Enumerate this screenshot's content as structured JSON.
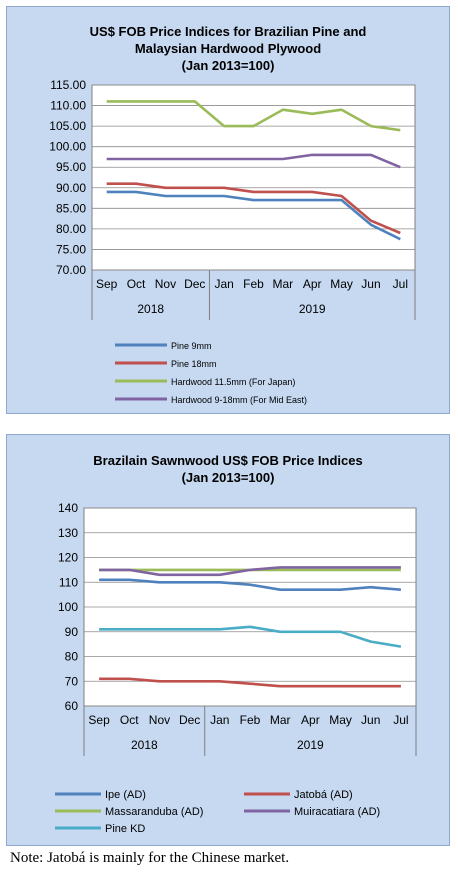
{
  "note": "Note: Jatobá is mainly for the Chinese market.",
  "chart_data": [
    {
      "type": "line",
      "title_lines": [
        "US$ FOB Price Indices for Brazilian Pine and",
        "Malaysian Hardwood Plywood",
        "(Jan 2013=100)"
      ],
      "categories": [
        "Sep",
        "Oct",
        "Nov",
        "Dec",
        "Jan",
        "Feb",
        "Mar",
        "Apr",
        "May",
        "Jun",
        "Jul"
      ],
      "year_groups": [
        {
          "label": "2018",
          "start": 0,
          "end": 3
        },
        {
          "label": "2019",
          "start": 4,
          "end": 10
        }
      ],
      "ylim": [
        70,
        115
      ],
      "ystep": 5,
      "ytick_decimals": 2,
      "grid": "horizontal",
      "legend_position": "bottom",
      "legend_columns": 1,
      "series": [
        {
          "name": "Pine 9mm",
          "color": "#4f81bd",
          "values": [
            89,
            89,
            88,
            88,
            88,
            87,
            87,
            87,
            87,
            81,
            77.5
          ]
        },
        {
          "name": "Pine 18mm",
          "color": "#c0504d",
          "values": [
            91,
            91,
            90,
            90,
            90,
            89,
            89,
            89,
            88,
            82,
            79
          ]
        },
        {
          "name": "Hardwood 11.5mm (For Japan)",
          "color": "#9bbb59",
          "values": [
            111,
            111,
            111,
            111,
            105,
            105,
            109,
            108,
            109,
            105,
            104
          ]
        },
        {
          "name": "Hardwood 9-18mm (For Mid East)",
          "color": "#8064a2",
          "values": [
            97,
            97,
            97,
            97,
            97,
            97,
            97,
            98,
            98,
            98,
            95
          ]
        }
      ]
    },
    {
      "type": "line",
      "title_lines": [
        "Brazilain Sawnwood US$ FOB Price Indices",
        "(Jan 2013=100)"
      ],
      "categories": [
        "Sep",
        "Oct",
        "Nov",
        "Dec",
        "Jan",
        "Feb",
        "Mar",
        "Apr",
        "May",
        "Jun",
        "Jul"
      ],
      "year_groups": [
        {
          "label": "2018",
          "start": 0,
          "end": 3
        },
        {
          "label": "2019",
          "start": 4,
          "end": 10
        }
      ],
      "ylim": [
        60,
        140
      ],
      "ystep": 10,
      "ytick_decimals": 0,
      "grid": "horizontal",
      "legend_position": "bottom",
      "legend_columns": 2,
      "series": [
        {
          "name": "Ipe (AD)",
          "color": "#4f81bd",
          "values": [
            111,
            111,
            110,
            110,
            110,
            109,
            107,
            107,
            107,
            108,
            107
          ]
        },
        {
          "name": "Jatobá (AD)",
          "color": "#c0504d",
          "values": [
            71,
            71,
            70,
            70,
            70,
            69,
            68,
            68,
            68,
            68,
            68
          ]
        },
        {
          "name": "Massaranduba (AD)",
          "color": "#9bbb59",
          "values": [
            115,
            115,
            115,
            115,
            115,
            115,
            115,
            115,
            115,
            115,
            115
          ]
        },
        {
          "name": "Muiracatiara (AD)",
          "color": "#8064a2",
          "values": [
            115,
            115,
            113,
            113,
            113,
            115,
            116,
            116,
            116,
            116,
            116
          ]
        },
        {
          "name": "Pine KD",
          "color": "#4bacc6",
          "values": [
            91,
            91,
            91,
            91,
            91,
            92,
            90,
            90,
            90,
            86,
            84
          ]
        }
      ]
    }
  ]
}
